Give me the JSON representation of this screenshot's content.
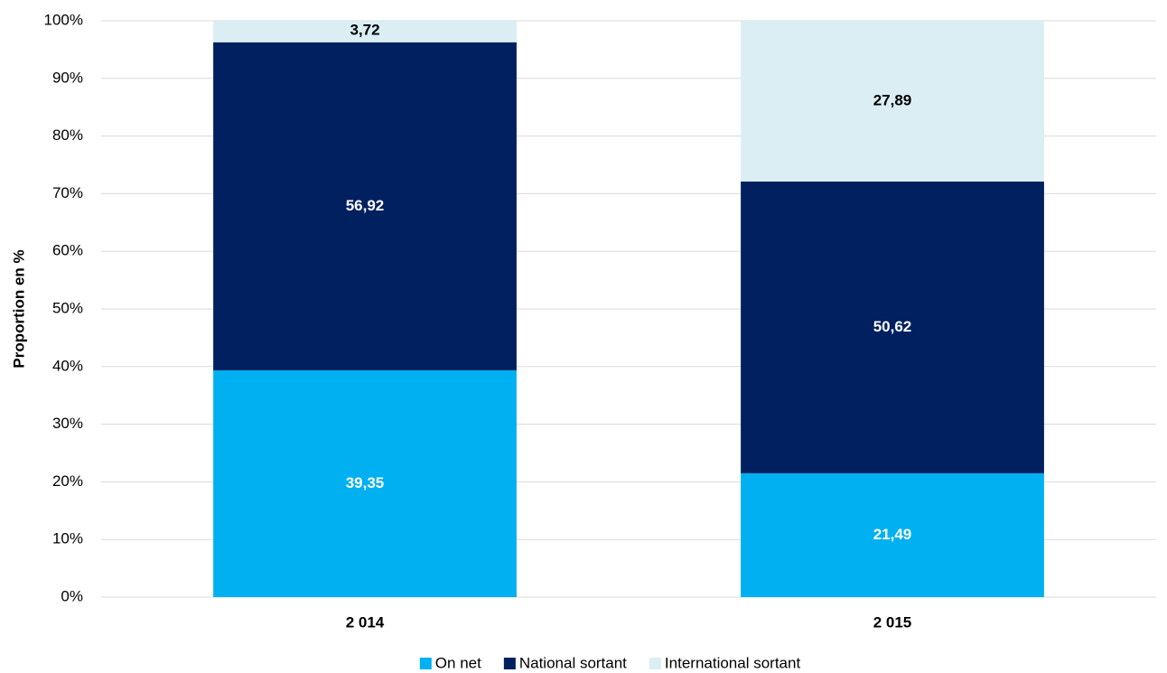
{
  "chart_data": {
    "type": "stacked_bar",
    "y_label": "Proportion en %",
    "categories": [
      "2 014",
      "2 015"
    ],
    "series": [
      {
        "name": "On net",
        "color": "#00b0f0",
        "label_color": "#ffffff",
        "values": [
          39.35,
          21.49
        ],
        "value_labels": [
          "39,35",
          "21,49"
        ]
      },
      {
        "name": "National sortant",
        "color": "#002060",
        "label_color": "#ffffff",
        "values": [
          56.92,
          50.62
        ],
        "value_labels": [
          "56,92",
          "50,62"
        ]
      },
      {
        "name": "International sortant",
        "color": "#daeef3",
        "label_color": "#000000",
        "values": [
          3.72,
          27.89
        ],
        "value_labels": [
          "3,72",
          "27,89"
        ]
      }
    ],
    "ylim": [
      0,
      100
    ],
    "yticks": [
      {
        "value": 0,
        "label": "0%"
      },
      {
        "value": 10,
        "label": "10%"
      },
      {
        "value": 20,
        "label": "20%"
      },
      {
        "value": 30,
        "label": "30%"
      },
      {
        "value": 40,
        "label": "40%"
      },
      {
        "value": 50,
        "label": "50%"
      },
      {
        "value": 60,
        "label": "60%"
      },
      {
        "value": 70,
        "label": "70%"
      },
      {
        "value": 80,
        "label": "80%"
      },
      {
        "value": 90,
        "label": "90%"
      },
      {
        "value": 100,
        "label": "100%"
      }
    ],
    "grid": true,
    "legend": "bottom"
  }
}
